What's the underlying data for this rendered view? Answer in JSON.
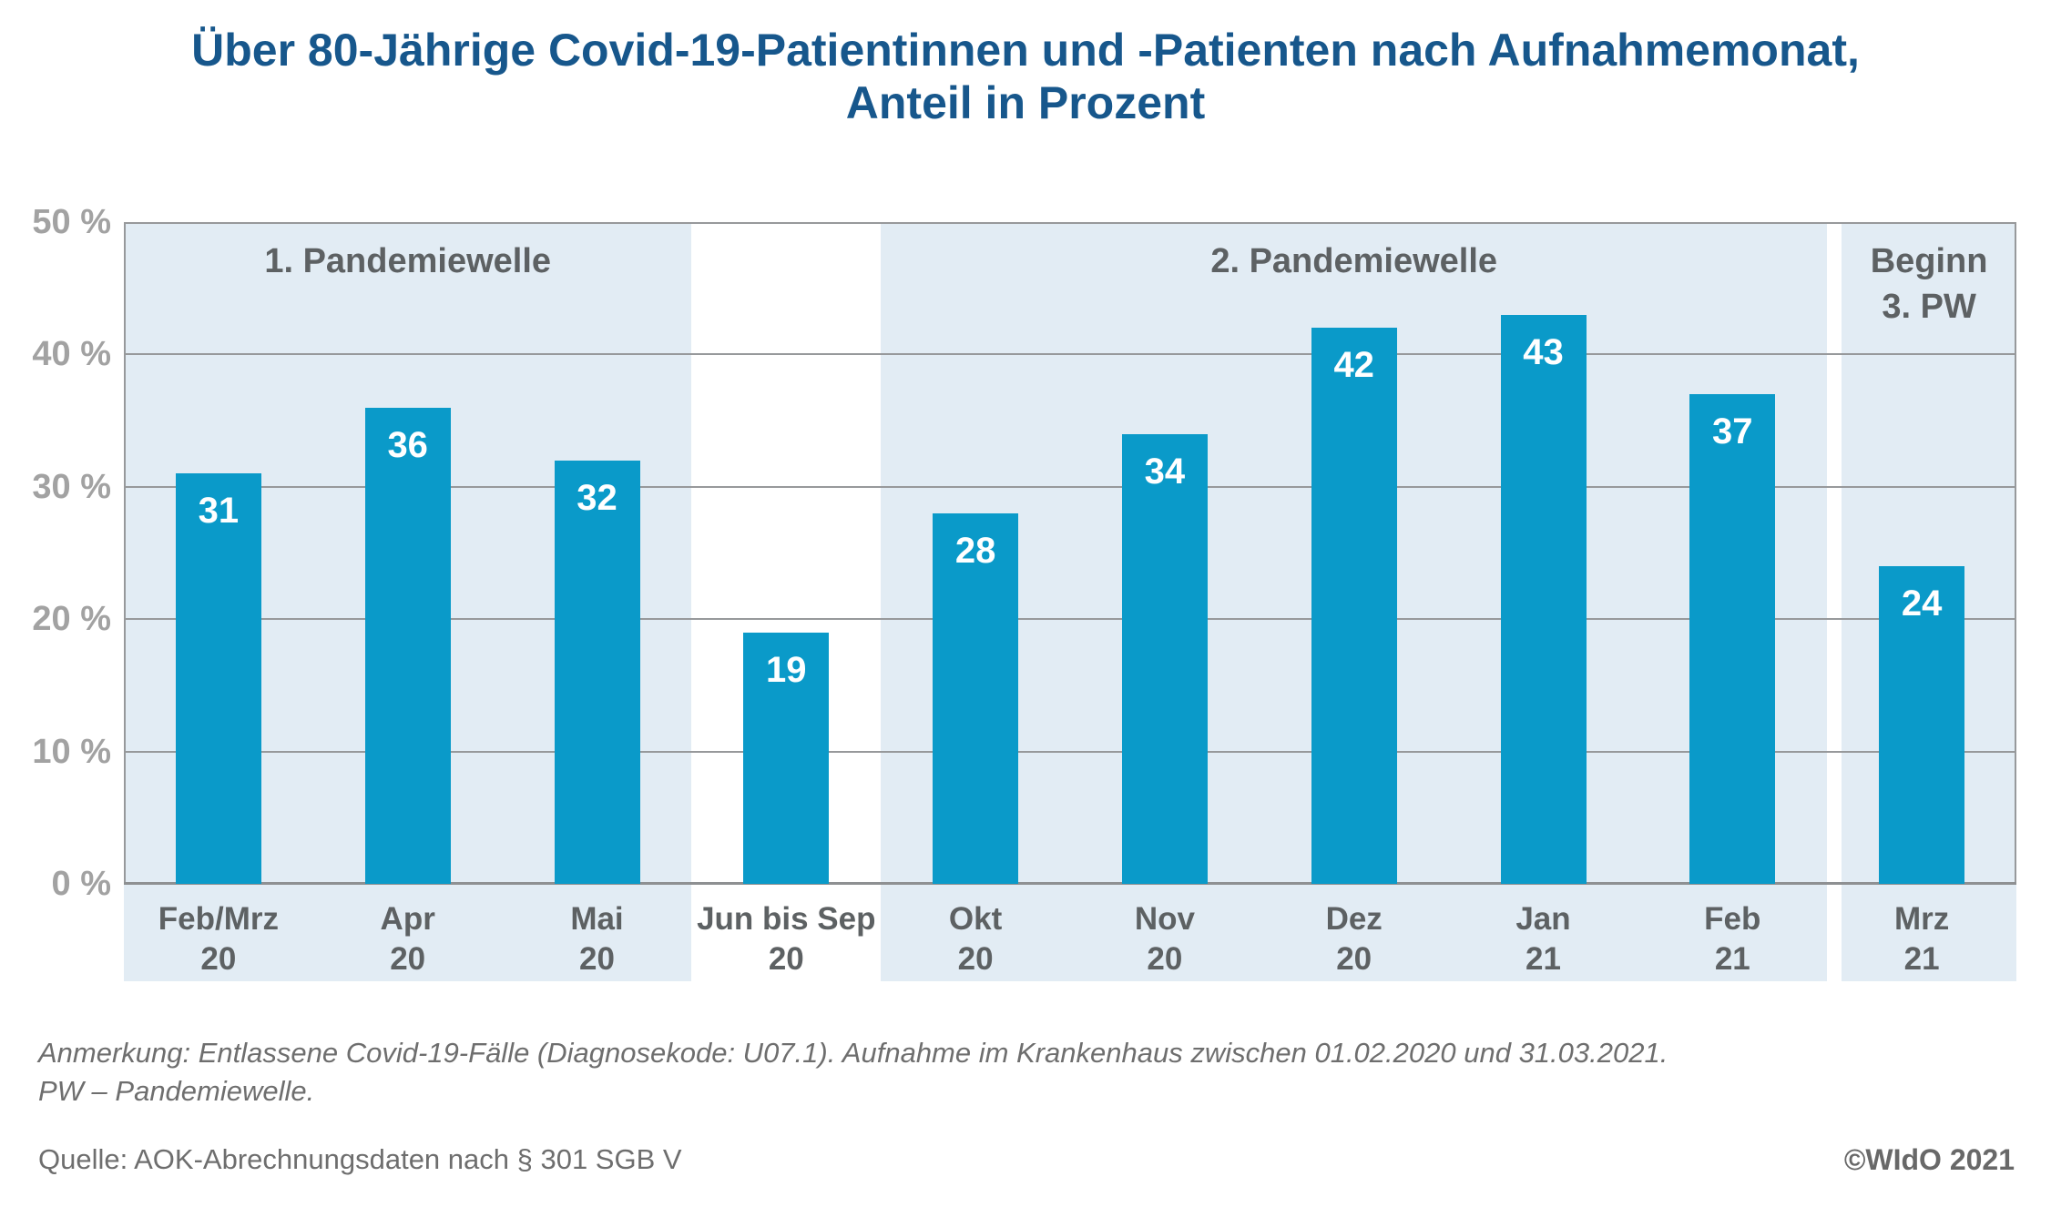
{
  "title": {
    "line1": "Über 80-Jährige Covid-19-Patientinnen und -Patienten nach Aufnahmemonat,",
    "line2": "Anteil in Prozent"
  },
  "chart_data": {
    "type": "bar",
    "title": "Über 80-Jährige Covid-19-Patientinnen und -Patienten nach Aufnahmemonat, Anteil in Prozent",
    "unit": "%",
    "ylim": [
      0,
      50
    ],
    "grid": "on",
    "yticks": {
      "values": [
        0,
        10,
        20,
        30,
        40,
        50
      ],
      "labels": [
        "0 %",
        "10 %",
        "20 %",
        "30 %",
        "40 %",
        "50 %"
      ]
    },
    "categories": [
      {
        "line1": "Feb/Mrz",
        "line2": "20"
      },
      {
        "line1": "Apr",
        "line2": "20"
      },
      {
        "line1": "Mai",
        "line2": "20"
      },
      {
        "line1": "Jun bis Sep",
        "line2": "20"
      },
      {
        "line1": "Okt",
        "line2": "20"
      },
      {
        "line1": "Nov",
        "line2": "20"
      },
      {
        "line1": "Dez",
        "line2": "20"
      },
      {
        "line1": "Jan",
        "line2": "21"
      },
      {
        "line1": "Feb",
        "line2": "21"
      },
      {
        "line1": "Mrz",
        "line2": "21"
      }
    ],
    "values": [
      31,
      36,
      32,
      19,
      28,
      34,
      42,
      43,
      37,
      24
    ],
    "regions": [
      {
        "label_lines": [
          "1. Pandemiewelle"
        ],
        "from_slot": 0,
        "to_slot": 3,
        "shaded": true,
        "inset_left": 0
      },
      {
        "label_lines": [],
        "from_slot": 3,
        "to_slot": 4,
        "shaded": false,
        "inset_left": 0
      },
      {
        "label_lines": [
          "2. Pandemiewelle"
        ],
        "from_slot": 4,
        "to_slot": 9,
        "shaded": true,
        "inset_left": 0
      },
      {
        "label_lines": [
          "Beginn",
          "3. PW"
        ],
        "from_slot": 9,
        "to_slot": 10,
        "shaded": true,
        "inset_left": 16
      }
    ]
  },
  "footer": {
    "note_line1": "Anmerkung: Entlassene Covid-19-Fälle (Diagnosekode: U07.1). Aufnahme im Krankenhaus zwischen 01.02.2020 und 31.03.2021.",
    "note_line2": "PW – Pandemiewelle.",
    "source": "Quelle: AOK-Abrechnungsdaten nach § 301 SGB V",
    "copyright": "©WIdO 2021"
  },
  "colors": {
    "title": "#17578c",
    "bar": "#0a9ac9",
    "bar_label": "#ffffff",
    "region_bg": "#e2ecf4",
    "grid": "#97999b",
    "zero_line": "#8e9092",
    "ylabel": "#a2a2a2",
    "xlabel": "#5d6163",
    "region_label": "#5d6163",
    "note": "#6e6e6e",
    "copyright": "#686868"
  }
}
